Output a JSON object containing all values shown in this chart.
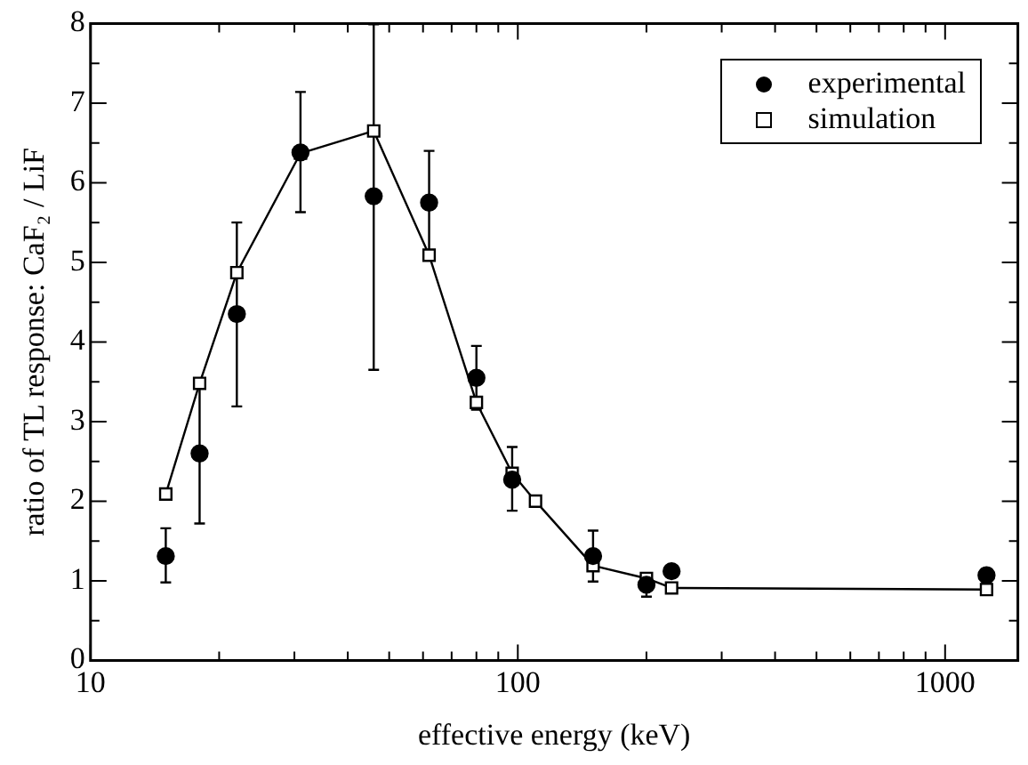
{
  "chart_data": {
    "type": "line",
    "xlabel": "effective energy (keV)",
    "ylabel": "ratio of TL response: CaF₂ / LiF",
    "log": "x",
    "xlim": [
      10,
      1480
    ],
    "xticks": [
      10,
      {
        "value": 20,
        "label": null
      },
      {
        "value": 30,
        "label": null
      },
      {
        "value": 40,
        "label": null
      },
      {
        "value": 50,
        "label": null
      },
      {
        "value": 60,
        "label": null
      },
      {
        "value": 70,
        "label": null
      },
      {
        "value": 80,
        "label": null
      },
      {
        "value": 90,
        "label": null
      },
      100,
      {
        "value": 200,
        "label": null
      },
      {
        "value": 300,
        "label": null
      },
      {
        "value": 400,
        "label": null
      },
      {
        "value": 500,
        "label": null
      },
      {
        "value": 600,
        "label": null
      },
      {
        "value": 700,
        "label": null
      },
      {
        "value": 800,
        "label": null
      },
      {
        "value": 900,
        "label": null
      },
      1000
    ],
    "ylim": [
      0,
      8
    ],
    "yticks": [
      0,
      {
        "value": 0.5,
        "label": null
      },
      1,
      {
        "value": 1.5,
        "label": null
      },
      2,
      {
        "value": 2.5,
        "label": null
      },
      3,
      {
        "value": 3.5,
        "label": null
      },
      4,
      {
        "value": 4.5,
        "label": null
      },
      5,
      {
        "value": 5.5,
        "label": null
      },
      6,
      {
        "value": 6.5,
        "label": null
      },
      7,
      {
        "value": 7.5,
        "label": null
      },
      8
    ],
    "grid": false,
    "legend": "top right",
    "series": [
      {
        "name": "experimental",
        "type": "scatter",
        "marker": "circle",
        "color": "#000000",
        "x": [
          15,
          18,
          22,
          31,
          46,
          62,
          80,
          97,
          150,
          200,
          229,
          1250
        ],
        "values": [
          1.31,
          2.6,
          4.35,
          6.38,
          5.83,
          5.75,
          3.55,
          2.27,
          1.31,
          0.95,
          1.12,
          1.07
        ],
        "errors": [
          [
            0.98,
            1.66
          ],
          [
            1.72,
            3.48
          ],
          [
            3.19,
            5.5
          ],
          [
            5.63,
            7.14
          ],
          [
            3.65,
            7.99
          ],
          [
            5.1,
            6.4
          ],
          [
            3.15,
            3.95
          ],
          [
            1.88,
            2.68
          ],
          [
            0.99,
            1.63
          ],
          [
            0.8,
            1.05
          ],
          null,
          [
            0.98,
            1.15
          ]
        ]
      },
      {
        "name": "simulation",
        "type": "line",
        "marker": "square",
        "line_style": "solid",
        "color": "#000000",
        "x": [
          15,
          18,
          22,
          31,
          46,
          62,
          80,
          97,
          110,
          150,
          200,
          229,
          1250
        ],
        "values": [
          2.09,
          3.48,
          4.87,
          6.37,
          6.65,
          5.09,
          3.24,
          2.35,
          2.0,
          1.19,
          1.03,
          0.91,
          0.89
        ]
      }
    ]
  }
}
